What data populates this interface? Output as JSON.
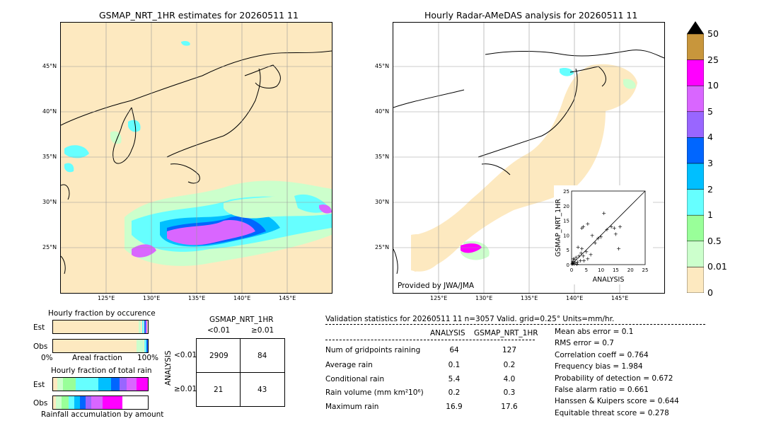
{
  "left_map": {
    "title": "GSMAP_NRT_1HR estimates for 20260511 11",
    "lat_labels": [
      "45°N",
      "40°N",
      "35°N",
      "30°N",
      "25°N"
    ],
    "lon_labels": [
      "125°E",
      "130°E",
      "135°E",
      "140°E",
      "145°E"
    ]
  },
  "right_map": {
    "title": "Hourly Radar-AMeDAS analysis for 20260511 11",
    "lat_labels": [
      "45°N",
      "40°N",
      "35°N",
      "30°N",
      "25°N"
    ],
    "lon_labels": [
      "125°E",
      "130°E",
      "135°E",
      "140°E",
      "145°E"
    ],
    "credit": "Provided by JWA/JMA"
  },
  "colorbar": {
    "labels": [
      "50",
      "25",
      "10",
      "5",
      "4",
      "3",
      "2",
      "1",
      "0.5",
      "0.01",
      "0"
    ],
    "colors": [
      "#c8963c",
      "#ff00ff",
      "#d966ff",
      "#9966ff",
      "#0066ff",
      "#00bfff",
      "#66ffff",
      "#99ff99",
      "#ccffcc",
      "#fde9c0"
    ]
  },
  "scatter": {
    "xlabel": "ANALYSIS",
    "ylabel": "GSMAP_NRT_1HR",
    "ticks": [
      "0",
      "5",
      "10",
      "15",
      "20",
      "25"
    ]
  },
  "fraction_occurrence": {
    "title": "Hourly fraction by occurence",
    "row1": "Est",
    "row2": "Obs",
    "axis_left": "0%",
    "axis_mid": "Areal fraction",
    "axis_right": "100%"
  },
  "fraction_total": {
    "title": "Hourly fraction of total rain",
    "row1": "Est",
    "row2": "Obs",
    "footer": "Rainfall accumulation by amount"
  },
  "contingency": {
    "col_title": "GSMAP_NRT_1HR",
    "col1": "<0.01",
    "col2": "≥0.01",
    "row_title": "ANALYSIS",
    "row1": "<0.01",
    "row2": "≥0.01",
    "cells": [
      "2909",
      "84",
      "21",
      "43"
    ]
  },
  "validation": {
    "header": "Validation statistics for 20260511 11  n=3057 Valid. grid=0.25° Units=mm/hr.",
    "col_analysis": "ANALYSIS",
    "col_gsmap": "GSMAP_NRT_1HR",
    "rows": [
      {
        "label": "Num of gridpoints raining",
        "a": "64",
        "g": "127"
      },
      {
        "label": "Average rain",
        "a": "0.1",
        "g": "0.2"
      },
      {
        "label": "Conditional rain",
        "a": "5.4",
        "g": "4.0"
      },
      {
        "label": "Rain volume (mm km²10⁶)",
        "a": "0.2",
        "g": "0.3"
      },
      {
        "label": "Maximum rain",
        "a": "16.9",
        "g": "17.6"
      }
    ],
    "scores": [
      "Mean abs error =    0.1",
      "RMS error =    0.7",
      "Correlation coeff =  0.764",
      "Frequency bias =  1.984",
      "Probability of detection =  0.672",
      "False alarm ratio =  0.661",
      "Hanssen & Kuipers score =  0.644",
      "Equitable threat score =  0.278"
    ]
  },
  "chart_data": {
    "type": "scatter",
    "xlabel": "ANALYSIS",
    "ylabel": "GSMAP_NRT_1HR",
    "xlim": [
      0,
      25
    ],
    "ylim": [
      0,
      25
    ],
    "points": [
      [
        0.3,
        0.5
      ],
      [
        0.5,
        1.2
      ],
      [
        0.8,
        0.4
      ],
      [
        1.0,
        1.8
      ],
      [
        1.2,
        0.7
      ],
      [
        1.5,
        2.5
      ],
      [
        0.6,
        2.0
      ],
      [
        2.0,
        1.0
      ],
      [
        2.5,
        3.0
      ],
      [
        3.0,
        1.5
      ],
      [
        3.2,
        4.0
      ],
      [
        2.2,
        6.0
      ],
      [
        3.5,
        5.5
      ],
      [
        4.0,
        3.0
      ],
      [
        4.2,
        1.5
      ],
      [
        5.0,
        4.5
      ],
      [
        5.5,
        2.0
      ],
      [
        6.5,
        3.5
      ],
      [
        4.0,
        13.0
      ],
      [
        3.5,
        12.5
      ],
      [
        5.5,
        14.0
      ],
      [
        7.0,
        10.0
      ],
      [
        8.0,
        7.5
      ],
      [
        9.0,
        9.0
      ],
      [
        10.0,
        9.5
      ],
      [
        11.0,
        17.5
      ],
      [
        12.0,
        12.0
      ],
      [
        13.5,
        13.0
      ],
      [
        14.5,
        12.5
      ],
      [
        15.0,
        10.5
      ],
      [
        16.5,
        13.0
      ],
      [
        16.0,
        5.5
      ],
      [
        0.2,
        0.2
      ],
      [
        0.4,
        0.8
      ],
      [
        1.8,
        0.3
      ]
    ]
  }
}
